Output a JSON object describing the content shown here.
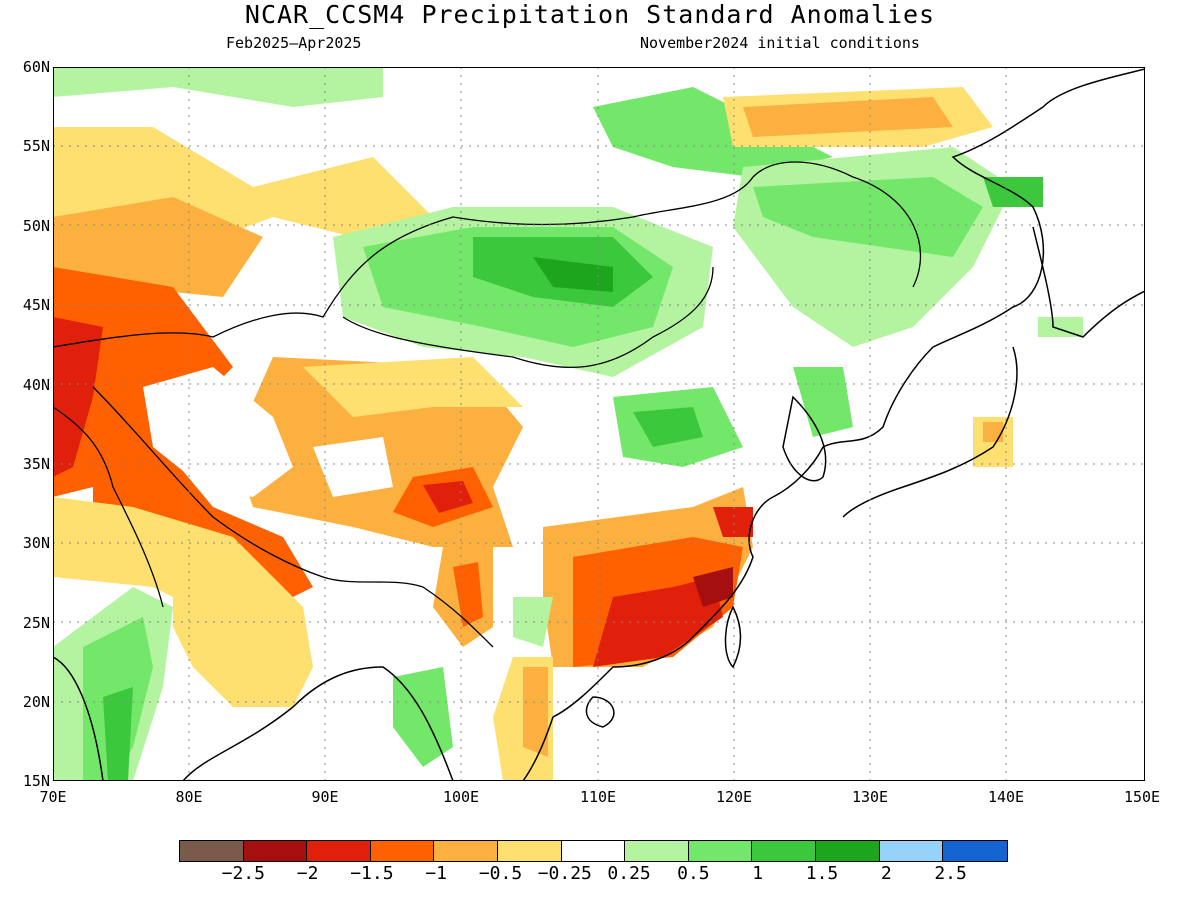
{
  "title": "NCAR_CCSM4 Precipitation Standard Anomalies",
  "subtitle_left": "Feb2025–Apr2025",
  "subtitle_right": "November2024 initial conditions",
  "lat_labels": [
    "60N",
    "55N",
    "50N",
    "45N",
    "40N",
    "35N",
    "30N",
    "25N",
    "20N",
    "15N"
  ],
  "lon_labels": [
    "70E",
    "80E",
    "90E",
    "100E",
    "110E",
    "120E",
    "130E",
    "140E",
    "150E"
  ],
  "colorbar": {
    "colors": [
      "#7a5a4a",
      "#a50f0f",
      "#e0200a",
      "#ff6000",
      "#fbb040",
      "#fde070",
      "#ffffff",
      "#b4f3a0",
      "#73e76a",
      "#3cc83c",
      "#1ea51e",
      "#96d2fa",
      "#1464d2"
    ],
    "labels": [
      "−2.5",
      "−2",
      "−1.5",
      "−1",
      "−0.5",
      "−0.25",
      "0.25",
      "0.5",
      "1",
      "1.5",
      "2",
      "2.5"
    ]
  }
}
